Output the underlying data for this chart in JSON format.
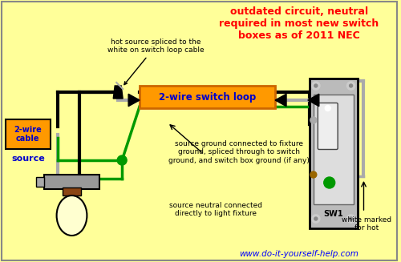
{
  "bg_color": "#FFFF99",
  "title_text": "outdated circuit, neutral\nrequired in most new switch\nboxes as of 2011 NEC",
  "label_2wire_cable": "2-wire\ncable",
  "label_source": "source",
  "label_switch_loop": "2-wire switch loop",
  "label_hot_splice": "hot source spliced to the\nwhite on switch loop cable",
  "label_ground": "source ground connected to fixture\nground, spliced through to switch\nground, and switch box ground (if any)",
  "label_neutral": "source neutral connected\ndirectly to light fixture",
  "label_white_marked": "white marked\nfor hot",
  "label_sw1": "SW1",
  "website": "www.do-it-yourself-help.com",
  "orange_color": "#FF9900",
  "green_color": "#009900",
  "gray_wire": "#AAAAAA",
  "white_wire": "#CCCCCC",
  "red_label": "#FF0000",
  "blue_label": "#0000CC"
}
